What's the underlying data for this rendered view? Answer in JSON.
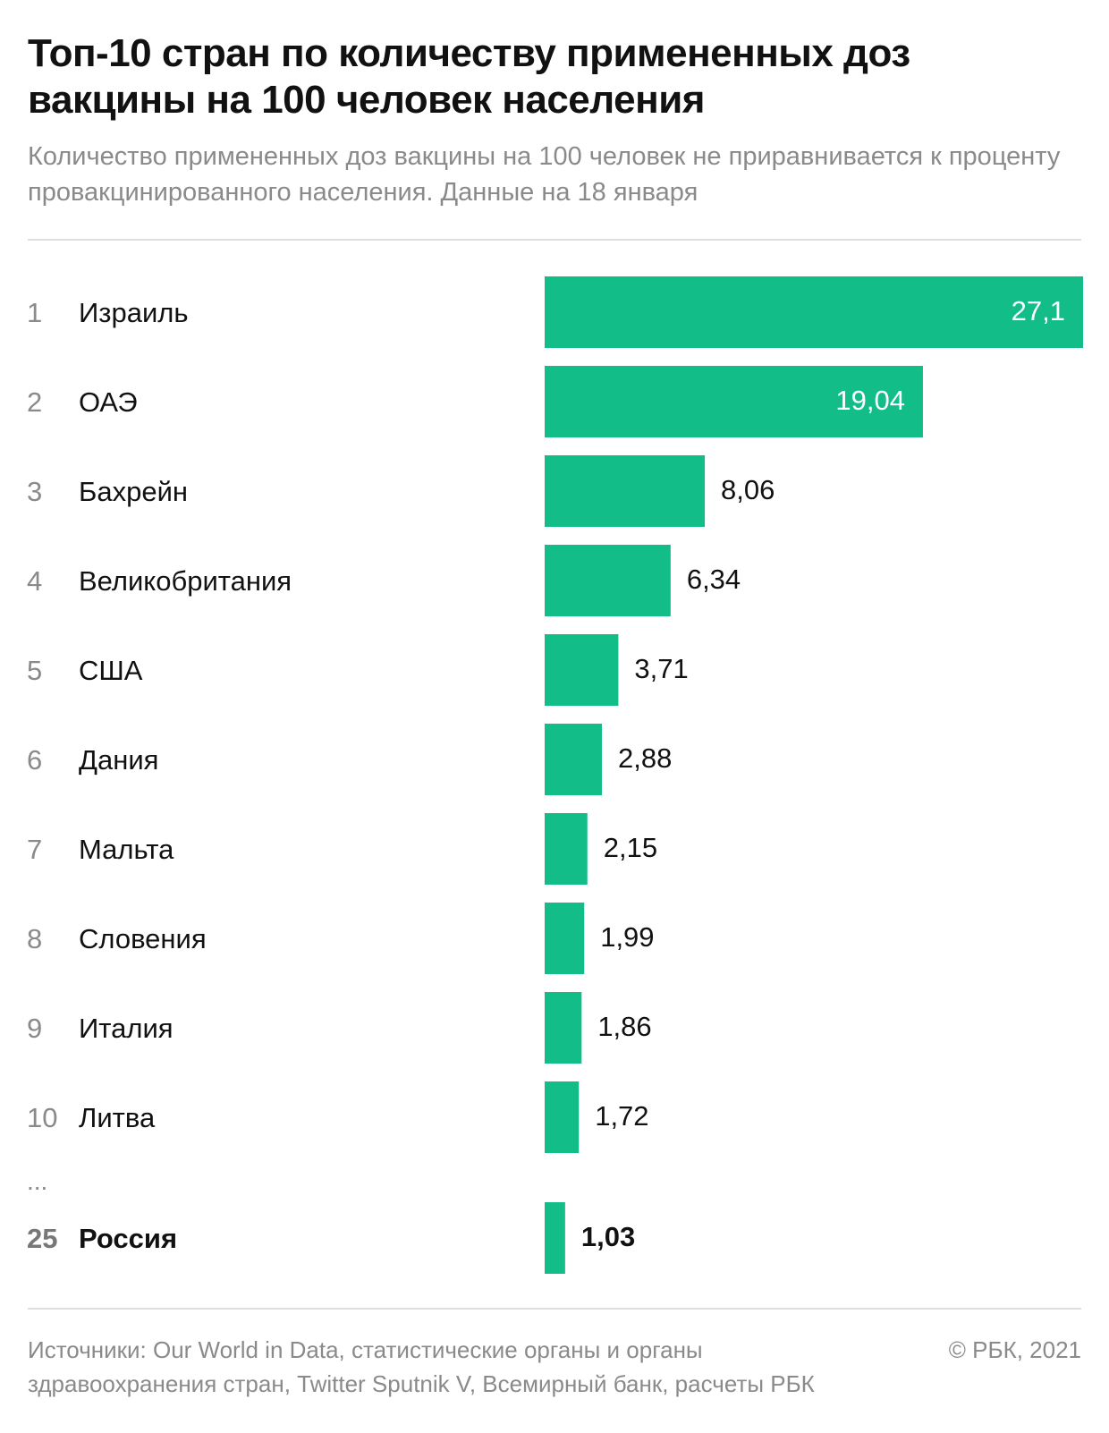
{
  "header": {
    "title": "Топ-10 стран по количеству примененных доз вакцины на 100 человек населения",
    "subtitle": "Количество примененных доз вакцины на 100 человек не приравнивается к проценту провакцинированного населения. Данные на 18 января"
  },
  "chart_data": {
    "type": "bar",
    "orientation": "horizontal",
    "bar_color": "#13bd88",
    "highlight_color": "#111111",
    "rows": [
      {
        "rank": "1",
        "country": "Израиль",
        "value": 27.1,
        "label": "27,1"
      },
      {
        "rank": "2",
        "country": "ОАЭ",
        "value": 19.04,
        "label": "19,04"
      },
      {
        "rank": "3",
        "country": "Бахрейн",
        "value": 8.06,
        "label": "8,06"
      },
      {
        "rank": "4",
        "country": "Великобритания",
        "value": 6.34,
        "label": "6,34"
      },
      {
        "rank": "5",
        "country": "США",
        "value": 3.71,
        "label": "3,71"
      },
      {
        "rank": "6",
        "country": "Дания",
        "value": 2.88,
        "label": "2,88"
      },
      {
        "rank": "7",
        "country": "Мальта",
        "value": 2.15,
        "label": "2,15"
      },
      {
        "rank": "8",
        "country": "Словения",
        "value": 1.99,
        "label": "1,99"
      },
      {
        "rank": "9",
        "country": "Италия",
        "value": 1.86,
        "label": "1,86"
      },
      {
        "rank": "10",
        "country": "Литва",
        "value": 1.72,
        "label": "1,72"
      },
      {
        "rank": "25",
        "country": "Россия",
        "value": 1.03,
        "label": "1,03",
        "highlight": true
      }
    ],
    "gap_marker": "...",
    "xlim": [
      0,
      27.1
    ],
    "grid": false
  },
  "footer": {
    "sources": "Источники: Our World in Data, статистические органы и органы здравоохранения стран, Twitter Sputnik V, Всемирный банк, расчеты РБК",
    "copyright": "© РБК, 2021"
  }
}
